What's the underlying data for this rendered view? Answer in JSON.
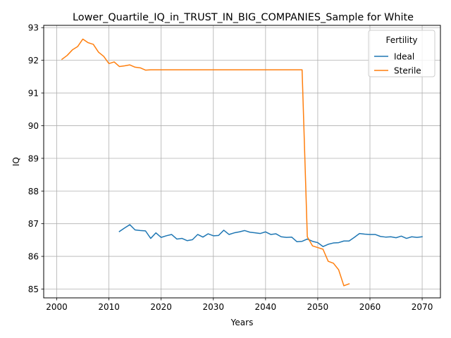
{
  "chart_data": {
    "type": "line",
    "title": "Lower_Quartile_IQ_in_TRUST_IN_BIG_COMPANIES_Sample for White",
    "xlabel": "Years",
    "ylabel": "IQ",
    "xlim": [
      1997.5,
      2073.5
    ],
    "ylim": [
      84.73,
      93.07
    ],
    "xticks": [
      2000,
      2010,
      2020,
      2030,
      2040,
      2050,
      2060,
      2070
    ],
    "yticks": [
      85,
      86,
      87,
      88,
      89,
      90,
      91,
      92,
      93
    ],
    "grid": true,
    "legend": {
      "title": "Fertility",
      "placement": "upper right"
    },
    "series": [
      {
        "name": "Ideal",
        "color": "#1f77b4",
        "x": [
          2012,
          2013,
          2014,
          2015,
          2016,
          2017,
          2018,
          2019,
          2020,
          2021,
          2022,
          2023,
          2024,
          2025,
          2026,
          2027,
          2028,
          2029,
          2030,
          2031,
          2032,
          2033,
          2034,
          2035,
          2036,
          2037,
          2038,
          2039,
          2040,
          2041,
          2042,
          2043,
          2044,
          2045,
          2046,
          2047,
          2048,
          2049,
          2050,
          2051,
          2052,
          2053,
          2054,
          2055,
          2056,
          2057,
          2058,
          2059,
          2060,
          2061,
          2062,
          2063,
          2064,
          2065,
          2066,
          2067,
          2068,
          2069,
          2070
        ],
        "y": [
          86.76,
          86.87,
          86.97,
          86.81,
          86.79,
          86.78,
          86.55,
          86.72,
          86.58,
          86.63,
          86.67,
          86.53,
          86.55,
          86.48,
          86.51,
          86.67,
          86.59,
          86.69,
          86.63,
          86.64,
          86.8,
          86.67,
          86.72,
          86.75,
          86.79,
          86.74,
          86.72,
          86.7,
          86.75,
          86.67,
          86.69,
          86.6,
          86.58,
          86.59,
          86.45,
          86.46,
          86.53,
          86.46,
          86.42,
          86.3,
          86.37,
          86.41,
          86.42,
          86.47,
          86.47,
          86.58,
          86.7,
          86.68,
          86.67,
          86.67,
          86.61,
          86.59,
          86.6,
          86.57,
          86.62,
          86.55,
          86.6,
          86.58,
          86.6
        ]
      },
      {
        "name": "Sterile",
        "color": "#ff7f0e",
        "x": [
          2001,
          2002,
          2003,
          2004,
          2005,
          2006,
          2007,
          2008,
          2009,
          2010,
          2011,
          2012,
          2013,
          2014,
          2015,
          2016,
          2017,
          2018,
          2019,
          2020,
          2021,
          2022,
          2023,
          2024,
          2025,
          2026,
          2027,
          2028,
          2029,
          2030,
          2031,
          2032,
          2033,
          2034,
          2035,
          2036,
          2037,
          2038,
          2039,
          2040,
          2041,
          2042,
          2043,
          2044,
          2045,
          2046,
          2047,
          2048,
          2049,
          2050,
          2051,
          2052,
          2053,
          2054,
          2055,
          2056
        ],
        "y": [
          92.03,
          92.15,
          92.32,
          92.42,
          92.65,
          92.54,
          92.49,
          92.25,
          92.12,
          91.9,
          91.95,
          91.81,
          91.83,
          91.86,
          91.79,
          91.77,
          91.7,
          91.71,
          91.71,
          91.71,
          91.71,
          91.71,
          91.71,
          91.71,
          91.71,
          91.71,
          91.71,
          91.71,
          91.71,
          91.71,
          91.71,
          91.71,
          91.71,
          91.71,
          91.71,
          91.71,
          91.71,
          91.71,
          91.71,
          91.71,
          91.71,
          91.71,
          91.71,
          91.71,
          91.71,
          91.71,
          91.71,
          86.6,
          86.32,
          86.27,
          86.22,
          85.85,
          85.79,
          85.59,
          85.1,
          85.16
        ]
      }
    ]
  }
}
